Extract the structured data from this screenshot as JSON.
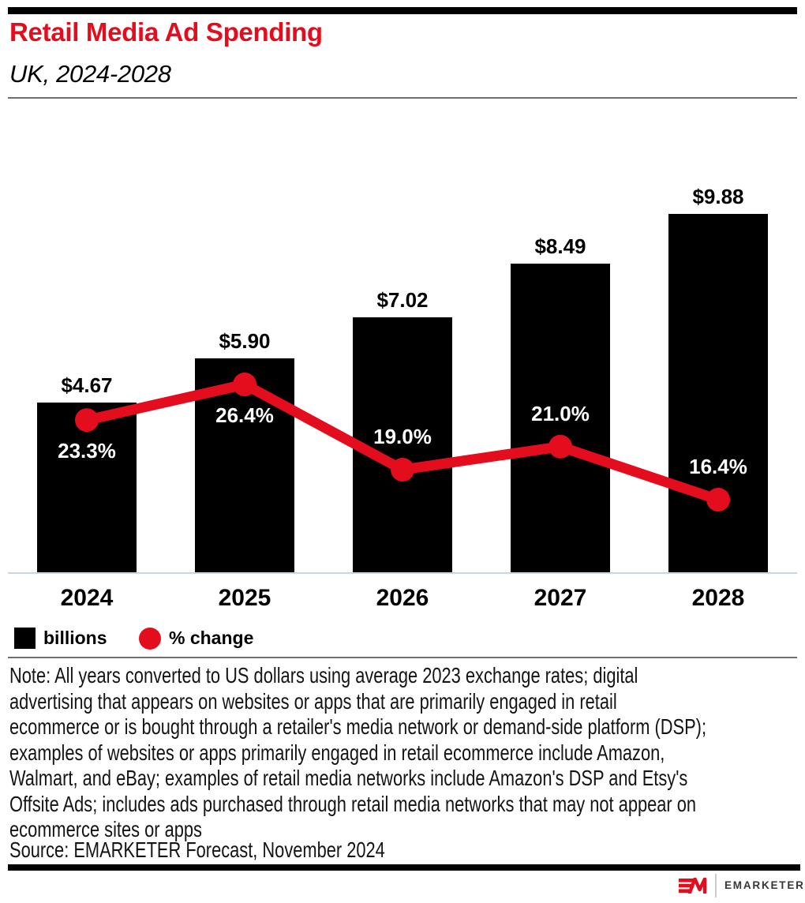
{
  "header": {
    "title": "Retail Media Ad Spending",
    "subtitle": "UK, 2024-2028"
  },
  "chart_data": {
    "type": "bar+line",
    "title": "Retail Media Ad Spending",
    "subtitle": "UK, 2024-2028",
    "categories": [
      "2024",
      "2025",
      "2026",
      "2027",
      "2028"
    ],
    "series": [
      {
        "name": "billions",
        "type": "bar",
        "color": "#000000",
        "values": [
          4.67,
          5.9,
          7.02,
          8.49,
          9.88
        ],
        "labels": [
          "$4.67",
          "$5.90",
          "$7.02",
          "$8.49",
          "$9.88"
        ]
      },
      {
        "name": "% change",
        "type": "line",
        "color": "#e40d1d",
        "values": [
          23.3,
          26.4,
          19.0,
          21.0,
          16.4
        ],
        "labels": [
          "23.3%",
          "26.4%",
          "19.0%",
          "21.0%",
          "16.4%"
        ],
        "label_side": [
          "below",
          "below",
          "above",
          "above",
          "above"
        ]
      }
    ],
    "grid": false,
    "legend_position": "bottom-left",
    "legend": [
      {
        "label": "billions",
        "swatch": "square",
        "color": "#000000"
      },
      {
        "label": "% change",
        "swatch": "circle",
        "color": "#e40d1d"
      }
    ]
  },
  "colors": {
    "accent": "#e40d1d",
    "bar": "#000000",
    "axis_line": "#cdd5e4",
    "rule": "#6e6e6e"
  },
  "note_lines": [
    "Note: All years converted to US dollars using average 2023 exchange rates; digital",
    "advertising that appears on websites or apps that are primarily engaged in retail",
    "ecommerce or is bought through a retailer's media network or demand-side platform (DSP);",
    "examples of websites or apps primarily engaged in retail ecommerce include Amazon,",
    "Walmart, and eBay; examples of retail media networks include Amazon's DSP and Etsy's",
    "Offsite Ads; includes ads purchased through retail media networks that may not appear on",
    "ecommerce sites or apps"
  ],
  "source": "Source: EMARKETER Forecast, November 2024",
  "footer": {
    "brand": "EMARKETER"
  }
}
